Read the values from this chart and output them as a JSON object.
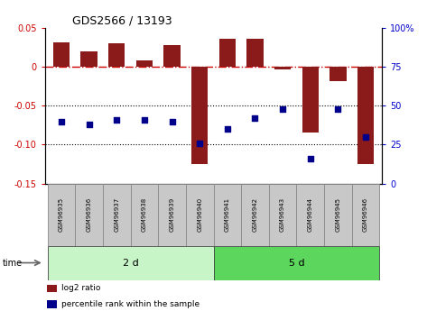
{
  "title": "GDS2566 / 13193",
  "samples": [
    "GSM96935",
    "GSM96936",
    "GSM96937",
    "GSM96938",
    "GSM96939",
    "GSM96940",
    "GSM96941",
    "GSM96942",
    "GSM96943",
    "GSM96944",
    "GSM96945",
    "GSM96946"
  ],
  "log2_ratio": [
    0.032,
    0.02,
    0.03,
    0.008,
    0.028,
    -0.125,
    0.036,
    0.036,
    -0.003,
    -0.085,
    -0.018,
    -0.125
  ],
  "percentile_rank": [
    40,
    38,
    41,
    41,
    40,
    26,
    35,
    42,
    48,
    16,
    48,
    30
  ],
  "groups": [
    {
      "label": "2 d",
      "start": 0,
      "end": 6
    },
    {
      "label": "5 d",
      "start": 6,
      "end": 12
    }
  ],
  "group_colors": [
    "#c8f5c8",
    "#5cd65c"
  ],
  "bar_color": "#8B1A1A",
  "dot_color": "#00008B",
  "ylim_left": [
    -0.15,
    0.05
  ],
  "ylim_right": [
    0,
    100
  ],
  "yticks_left": [
    -0.15,
    -0.1,
    -0.05,
    0,
    0.05
  ],
  "yticks_right": [
    0,
    25,
    50,
    75,
    100
  ],
  "background_color": "#ffffff",
  "time_label": "time",
  "legend_log2": "log2 ratio",
  "legend_pct": "percentile rank within the sample",
  "label_box_color": "#C8C8C8",
  "label_box_edge": "#888888"
}
